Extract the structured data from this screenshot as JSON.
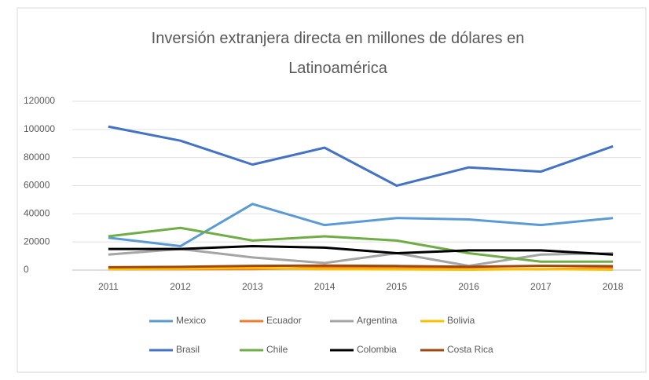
{
  "chart_data": {
    "type": "line",
    "title": "Inversión extranjera directa en millones de dólares en Latinoamérica",
    "categories": [
      "2011",
      "2012",
      "2013",
      "2014",
      "2015",
      "2016",
      "2017",
      "2018"
    ],
    "ylim": [
      0,
      120000
    ],
    "yticks": [
      0,
      20000,
      40000,
      60000,
      80000,
      100000,
      120000
    ],
    "grid": true,
    "legend": "bottom",
    "series": [
      {
        "name": "Mexico",
        "color": "#5b9bd5",
        "values": [
          23000,
          17000,
          47000,
          32000,
          37000,
          36000,
          32000,
          37000
        ]
      },
      {
        "name": "Ecuador",
        "color": "#ed7d31",
        "values": [
          600,
          600,
          700,
          1800,
          1300,
          800,
          600,
          1400
        ]
      },
      {
        "name": "Argentina",
        "color": "#a5a5a5",
        "values": [
          11000,
          15000,
          9000,
          5000,
          12000,
          3000,
          11000,
          12000
        ]
      },
      {
        "name": "Bolivia",
        "color": "#ffc000",
        "values": [
          800,
          1000,
          1700,
          600,
          500,
          300,
          700,
          300
        ]
      },
      {
        "name": "Brasil",
        "color": "#4472c4",
        "values": [
          102000,
          92000,
          75000,
          87000,
          60000,
          73000,
          70000,
          88000
        ]
      },
      {
        "name": "Chile",
        "color": "#70ad47",
        "values": [
          24000,
          30000,
          21000,
          24000,
          21000,
          12000,
          6000,
          6000
        ]
      },
      {
        "name": "Colombia",
        "color": "#000000",
        "values": [
          15000,
          15000,
          17000,
          16000,
          12000,
          14000,
          14000,
          11000
        ]
      },
      {
        "name": "Costa Rica",
        "color": "#9e480e",
        "values": [
          2000,
          2300,
          3000,
          3200,
          2900,
          2400,
          3000,
          2800
        ]
      }
    ]
  }
}
